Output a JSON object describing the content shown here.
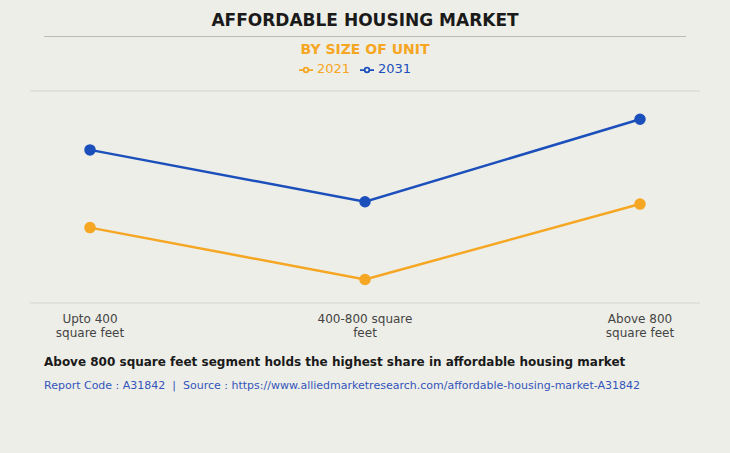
{
  "chart_data": {
    "type": "line",
    "title": "AFFORDABLE HOUSING MARKET",
    "subtitle": "BY SIZE OF UNIT",
    "categories": [
      "Upto 400\nsquare feet",
      "400-800 square\nfeet",
      "Above 800\nsquare feet"
    ],
    "series": [
      {
        "name": "2021",
        "color": "#F5A623",
        "values": [
          3.2,
          1.0,
          4.2
        ],
        "marker": "circle"
      },
      {
        "name": "2031",
        "color": "#1B4FBB",
        "values": [
          6.5,
          4.3,
          7.8
        ],
        "marker": "circle"
      }
    ],
    "ylim": [
      0,
      9
    ],
    "yticks": [
      0,
      1,
      2,
      3,
      4,
      5,
      6,
      7,
      8,
      9
    ],
    "grid": true,
    "tick_labels": "x",
    "legend": "top",
    "annotations": [
      "Above 800 square feet segment holds the highest share in affordable housing market",
      "Report Code : A31842  |  Source : https://www.alliedmarketresearch.com/affordable-housing-market-A31842"
    ]
  }
}
